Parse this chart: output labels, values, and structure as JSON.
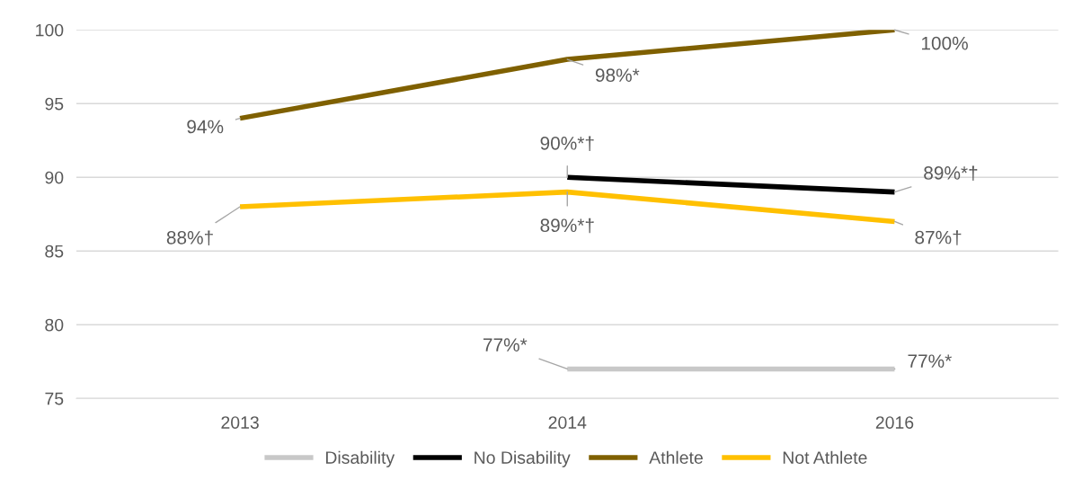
{
  "chart_data": {
    "type": "line",
    "categories": [
      "2013",
      "2014",
      "2016"
    ],
    "series": [
      {
        "name": "Disability",
        "color": "#c8c8c8",
        "values": [
          null,
          77,
          77
        ],
        "value_labels": [
          null,
          "77%*",
          "77%*"
        ]
      },
      {
        "name": "No Disability",
        "color": "#000000",
        "values": [
          null,
          90,
          89
        ],
        "value_labels": [
          null,
          "90%*†",
          "89%*†"
        ]
      },
      {
        "name": "Athlete",
        "color": "#7f6000",
        "values": [
          94,
          98,
          100
        ],
        "value_labels": [
          "94%",
          "98%*",
          "100%"
        ]
      },
      {
        "name": "Not Athlete",
        "color": "#ffc000",
        "values": [
          88,
          89,
          87
        ],
        "value_labels": [
          "88%†",
          "89%*†",
          "87%†"
        ]
      }
    ],
    "ylim": [
      75,
      100
    ],
    "yticks": [
      75,
      80,
      85,
      90,
      95,
      100
    ],
    "grid": "y",
    "legend": "bottom",
    "marker": "none",
    "line_style": "solid"
  }
}
